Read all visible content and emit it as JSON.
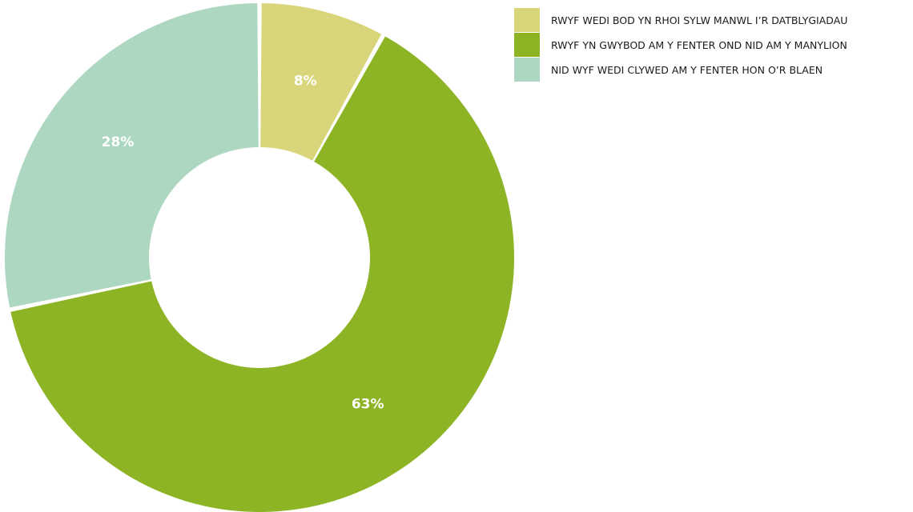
{
  "chart_data": {
    "type": "pie",
    "style": "donut",
    "legend_position": "top-right",
    "slices": [
      {
        "label": "RWYF WEDI BOD YN RHOI SYLW MANWL I’R DATBLYGIADAU",
        "value": 8,
        "display": "8%",
        "color": "#d9d57a"
      },
      {
        "label": "RWYF YN GWYBOD AM Y FENTER OND NID AM Y MANYLION",
        "value": 63,
        "display": "63%",
        "color": "#8db425"
      },
      {
        "label": "NID WYF WEDI CLYWED AM Y FENTER HON O’R BLAEN",
        "value": 28,
        "display": "28%",
        "color": "#add7c1"
      }
    ]
  }
}
